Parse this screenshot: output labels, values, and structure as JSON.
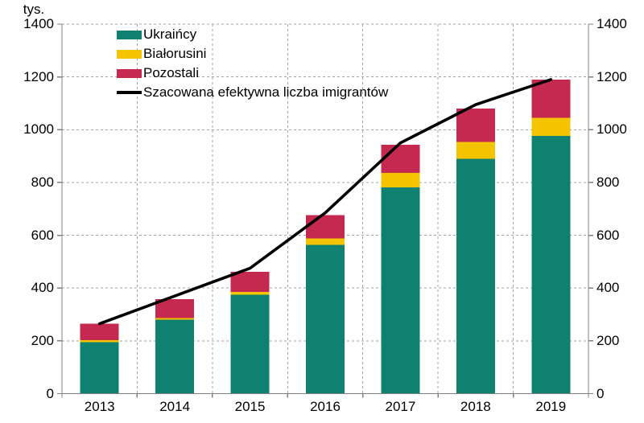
{
  "chart_data": {
    "type": "bar",
    "stacked": true,
    "title": "",
    "ylabel": "tys.",
    "xlabel": "",
    "ylim": [
      0,
      1400
    ],
    "yticks": [
      0,
      200,
      400,
      600,
      800,
      1000,
      1200,
      1400
    ],
    "grid": true,
    "legend_position": "top-left-inside",
    "categories": [
      "2013",
      "2014",
      "2015",
      "2016",
      "2017",
      "2018",
      "2019"
    ],
    "series": [
      {
        "name": "Ukraińcy",
        "color": "#0e8170",
        "values": [
          195,
          280,
          375,
          563,
          781,
          889,
          976
        ]
      },
      {
        "name": "Białorusini",
        "color": "#f5c400",
        "values": [
          7,
          6,
          10,
          25,
          56,
          64,
          69
        ]
      },
      {
        "name": "Pozostali",
        "color": "#c5294f",
        "values": [
          63,
          72,
          77,
          88,
          106,
          127,
          145
        ]
      }
    ],
    "line_overlay": {
      "name": "Szacowana efektywna liczba imigrantów",
      "color": "#000000",
      "values": [
        265,
        370,
        475,
        685,
        950,
        1095,
        1190
      ]
    },
    "colors": {
      "axis": "#808080",
      "gridline": "#a3a3a3",
      "text": "#000000"
    }
  }
}
